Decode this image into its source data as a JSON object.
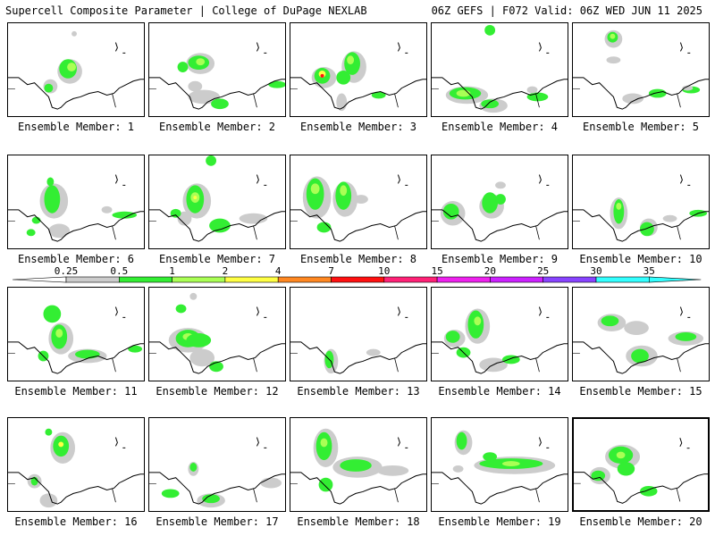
{
  "header": {
    "title": "Supercell Composite Parameter | College of DuPage NEXLAB",
    "run_info": "06Z GEFS | F072 Valid: 06Z WED JUN 11 2025"
  },
  "colorbar": {
    "ticks": [
      "0.25",
      "0.5",
      "1",
      "2",
      "4",
      "7",
      "10",
      "15",
      "20",
      "25",
      "30",
      "35"
    ],
    "colors": [
      "#ffffff",
      "#cccccc",
      "#33ee33",
      "#aaff55",
      "#ffff44",
      "#ff8822",
      "#ff1111",
      "#ff2277",
      "#ee22ee",
      "#cc22ff",
      "#8844ff",
      "#33ffff"
    ]
  },
  "members": [
    {
      "label": "Ensemble Member: 1",
      "selected": false
    },
    {
      "label": "Ensemble Member: 2",
      "selected": false
    },
    {
      "label": "Ensemble Member: 3",
      "selected": false
    },
    {
      "label": "Ensemble Member: 4",
      "selected": false
    },
    {
      "label": "Ensemble Member: 5",
      "selected": false
    },
    {
      "label": "Ensemble Member: 6",
      "selected": false
    },
    {
      "label": "Ensemble Member: 7",
      "selected": false
    },
    {
      "label": "Ensemble Member: 8",
      "selected": false
    },
    {
      "label": "Ensemble Member: 9",
      "selected": false
    },
    {
      "label": "Ensemble Member: 10",
      "selected": false
    },
    {
      "label": "Ensemble Member: 11",
      "selected": false
    },
    {
      "label": "Ensemble Member: 12",
      "selected": false
    },
    {
      "label": "Ensemble Member: 13",
      "selected": false
    },
    {
      "label": "Ensemble Member: 14",
      "selected": false
    },
    {
      "label": "Ensemble Member: 15",
      "selected": false
    },
    {
      "label": "Ensemble Member: 16",
      "selected": false
    },
    {
      "label": "Ensemble Member: 17",
      "selected": false
    },
    {
      "label": "Ensemble Member: 18",
      "selected": false
    },
    {
      "label": "Ensemble Member: 19",
      "selected": false
    },
    {
      "label": "Ensemble Member: 20",
      "selected": true
    }
  ]
}
